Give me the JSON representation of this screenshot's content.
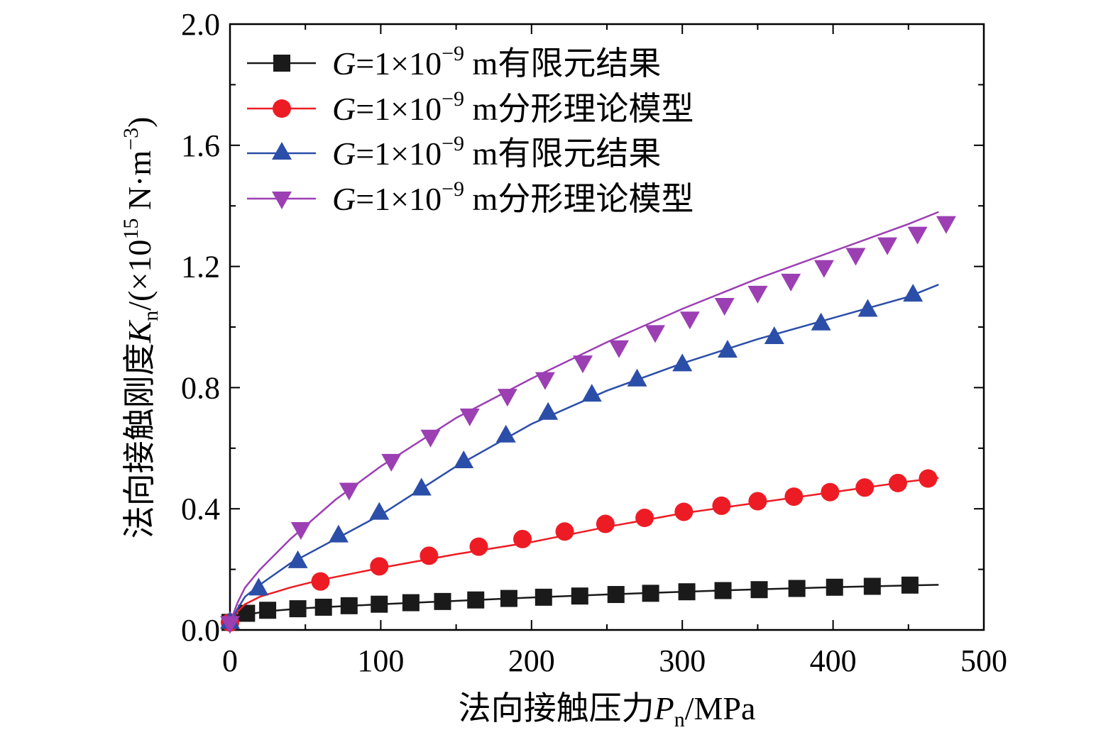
{
  "chart_data": {
    "type": "line",
    "xlabel": {
      "prefix": "法向接触压力",
      "var": "P",
      "sub": "n",
      "suffix": "/MPa"
    },
    "ylabel": {
      "prefix": "法向接触刚度",
      "var": "K",
      "sub": "n",
      "suffix_open": "/(×10",
      "sup": "15",
      "unit_mid": " N·m",
      "unit_sup": "−3",
      "suffix_close": ")"
    },
    "xlim": [
      0,
      500
    ],
    "ylim": [
      0,
      2.0
    ],
    "xticks": [
      "0",
      "100",
      "200",
      "300",
      "400",
      "500"
    ],
    "yticks": [
      "0.0",
      "0.4",
      "0.8",
      "1.2",
      "1.6",
      "2.0"
    ],
    "xtick_values": [
      0,
      100,
      200,
      300,
      400,
      500
    ],
    "ytick_values": [
      0,
      0.4,
      0.8,
      1.2,
      1.6,
      2.0
    ],
    "grid": false,
    "legend_position": "top-left",
    "series": [
      {
        "name": "G=1×10⁻⁹ m有限元结果",
        "legend": {
          "var": "G",
          "pre": "=1×10",
          "sup": "−9",
          "post": " m有限元结果"
        },
        "marker": "square",
        "color": "#1a1a1a",
        "line_x": [
          0,
          2,
          5,
          10,
          25,
          50,
          100,
          150,
          200,
          250,
          300,
          350,
          400,
          450,
          470
        ],
        "line_y": [
          0.005,
          0.025,
          0.04,
          0.05,
          0.062,
          0.072,
          0.085,
          0.096,
          0.107,
          0.117,
          0.126,
          0.134,
          0.141,
          0.147,
          0.149
        ],
        "x": [
          0,
          11,
          25,
          45,
          62,
          79,
          99,
          120,
          141,
          163,
          185,
          208,
          232,
          256,
          279,
          303,
          327,
          351,
          376,
          401,
          426,
          451
        ],
        "y": [
          0.025,
          0.055,
          0.065,
          0.07,
          0.075,
          0.08,
          0.085,
          0.09,
          0.094,
          0.099,
          0.104,
          0.108,
          0.112,
          0.117,
          0.121,
          0.126,
          0.13,
          0.133,
          0.137,
          0.141,
          0.144,
          0.148
        ]
      },
      {
        "name": "G=1×10⁻⁹ m分形理论模型",
        "legend": {
          "var": "G",
          "pre": "=1×10",
          "sup": "−9",
          "post": " m分形理论模型"
        },
        "marker": "circle",
        "color": "#ed1c24",
        "line_x": [
          0,
          2,
          5,
          10,
          20,
          40,
          60,
          100,
          150,
          200,
          250,
          300,
          350,
          400,
          450,
          470
        ],
        "line_y": [
          0.005,
          0.04,
          0.06,
          0.085,
          0.11,
          0.14,
          0.165,
          0.205,
          0.25,
          0.29,
          0.34,
          0.385,
          0.42,
          0.455,
          0.49,
          0.502
        ],
        "x": [
          0,
          60,
          99,
          132,
          165,
          194,
          222,
          249,
          275,
          301,
          326,
          350,
          374,
          398,
          421,
          443,
          463
        ],
        "y": [
          0.025,
          0.16,
          0.21,
          0.245,
          0.275,
          0.3,
          0.325,
          0.35,
          0.37,
          0.39,
          0.41,
          0.425,
          0.44,
          0.455,
          0.47,
          0.485,
          0.5
        ]
      },
      {
        "name": "G=1×10⁻⁹ m有限元结果",
        "legend": {
          "var": "G",
          "pre": "=1×10",
          "sup": "−9",
          "post": " m有限元结果"
        },
        "marker": "triangle-up",
        "color": "#2b4ea8",
        "line_x": [
          0,
          2,
          5,
          10,
          20,
          40,
          70,
          100,
          150,
          200,
          250,
          300,
          350,
          400,
          450,
          470
        ],
        "line_y": [
          0.005,
          0.04,
          0.07,
          0.11,
          0.15,
          0.22,
          0.3,
          0.38,
          0.54,
          0.68,
          0.79,
          0.88,
          0.96,
          1.03,
          1.1,
          1.14
        ],
        "x": [
          0,
          19,
          45,
          72,
          99,
          127,
          155,
          183,
          211,
          240,
          270,
          300,
          330,
          361,
          392,
          423,
          453
        ],
        "y": [
          0.025,
          0.135,
          0.225,
          0.31,
          0.385,
          0.465,
          0.555,
          0.64,
          0.715,
          0.775,
          0.825,
          0.875,
          0.92,
          0.965,
          1.01,
          1.055,
          1.105
        ]
      },
      {
        "name": "G=1×10⁻⁹ m分形理论模型",
        "legend": {
          "var": "G",
          "pre": "=1×10",
          "sup": "−9",
          "post": " m分形理论模型"
        },
        "marker": "triangle-down",
        "color": "#9c3fb3",
        "line_x": [
          0,
          2,
          5,
          10,
          20,
          40,
          70,
          100,
          150,
          200,
          250,
          300,
          350,
          400,
          450,
          470
        ],
        "line_y": [
          0.005,
          0.05,
          0.09,
          0.14,
          0.2,
          0.3,
          0.43,
          0.54,
          0.7,
          0.83,
          0.95,
          1.06,
          1.16,
          1.25,
          1.34,
          1.38
        ],
        "x": [
          0,
          47,
          79,
          107,
          133,
          159,
          184,
          209,
          234,
          258,
          282,
          305,
          328,
          350,
          372,
          394,
          415,
          436,
          456,
          475
        ],
        "y": [
          0.025,
          0.335,
          0.465,
          0.56,
          0.64,
          0.71,
          0.775,
          0.83,
          0.885,
          0.935,
          0.985,
          1.03,
          1.075,
          1.115,
          1.155,
          1.2,
          1.24,
          1.275,
          1.31,
          1.345
        ]
      }
    ]
  }
}
